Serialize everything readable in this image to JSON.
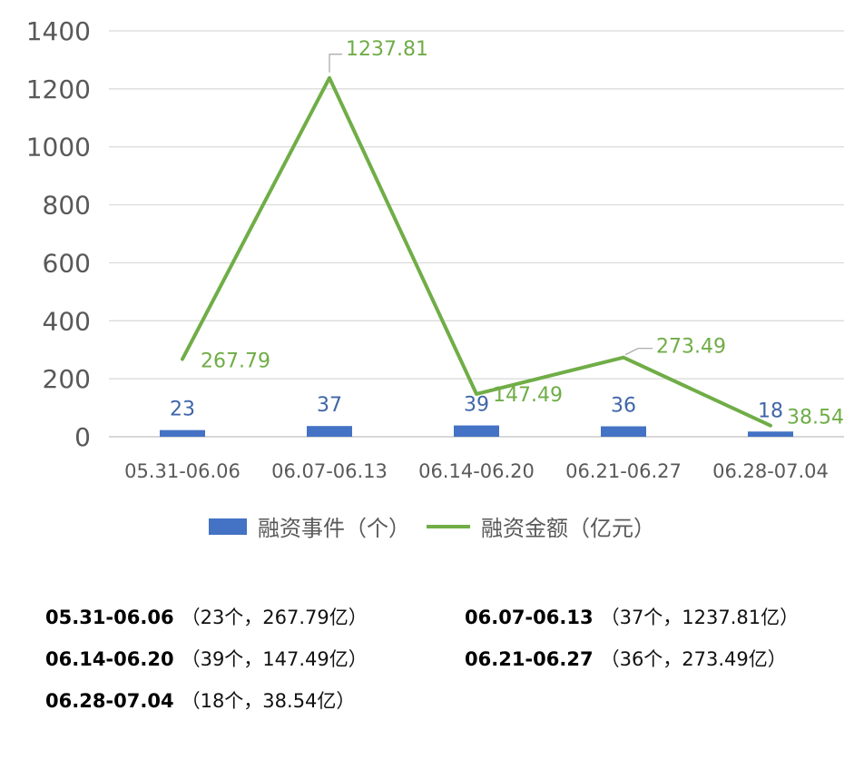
{
  "chart_data": {
    "type": "bar+line",
    "categories": [
      "05.31-06.06",
      "06.07-06.13",
      "06.14-06.20",
      "06.21-06.27",
      "06.28-07.04"
    ],
    "series": [
      {
        "name": "融资事件（个）",
        "type": "bar",
        "values": [
          23,
          37,
          39,
          36,
          18
        ],
        "color": "#4472c4",
        "labels": [
          "23",
          "37",
          "39",
          "36",
          "18"
        ]
      },
      {
        "name": "融资金额（亿元）",
        "type": "line",
        "values": [
          267.79,
          1237.81,
          147.49,
          273.49,
          38.54
        ],
        "color": "#70ad47",
        "labels": [
          "267.79",
          "1237.81",
          "147.49",
          "273.49",
          "38.54"
        ]
      }
    ],
    "ylim": [
      0,
      1400
    ],
    "yticks": [
      "0",
      "200",
      "400",
      "600",
      "800",
      "1000",
      "1200",
      "1400"
    ],
    "grid": true,
    "legend_position": "bottom"
  },
  "legend": {
    "bar_label": "融资事件（个）",
    "line_label": "融资金额（亿元）"
  },
  "summary": [
    {
      "period": "05.31-06.06",
      "detail": "（23个，267.79亿）"
    },
    {
      "period": "06.07-06.13",
      "detail": "（37个，1237.81亿）"
    },
    {
      "period": "06.14-06.20",
      "detail": "（39个，147.49亿）"
    },
    {
      "period": "06.21-06.27",
      "detail": "（36个，273.49亿）"
    },
    {
      "period": "06.28-07.04",
      "detail": "（18个，38.54亿）"
    }
  ]
}
